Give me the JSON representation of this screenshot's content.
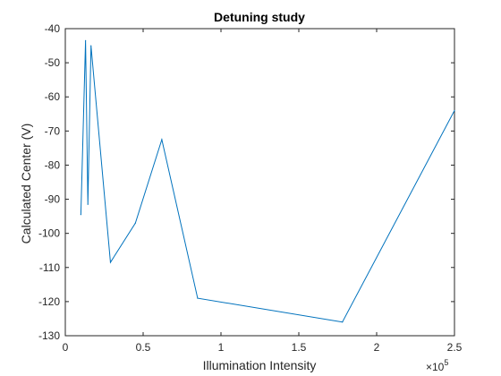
{
  "chart_data": {
    "type": "line",
    "title": "Detuning study",
    "xlabel": "Illumination Intensity",
    "ylabel": "Calculated Center (V)",
    "xlim": [
      0,
      250000
    ],
    "ylim": [
      -130,
      -40
    ],
    "x_ticks": [
      0,
      50000,
      100000,
      150000,
      200000,
      250000
    ],
    "x_tick_labels": [
      "0",
      "0.5",
      "1",
      "1.5",
      "2",
      "2.5"
    ],
    "x_multiplier": {
      "base": "×10",
      "exponent": "5"
    },
    "y_ticks": [
      -130,
      -120,
      -110,
      -100,
      -90,
      -80,
      -70,
      -60,
      -50,
      -40
    ],
    "y_tick_labels": [
      "-130",
      "-120",
      "-110",
      "-100",
      "-90",
      "-80",
      "-70",
      "-60",
      "-50",
      "-40"
    ],
    "grid": false,
    "series": [
      {
        "color": "#0072BD",
        "x": [
          10000,
          13000,
          14500,
          16500,
          29000,
          45000,
          62000,
          85000,
          178000,
          250000
        ],
        "y": [
          -94.5,
          -43.5,
          -91.5,
          -45.0,
          -108.5,
          -97.0,
          -72.5,
          -119.0,
          -126.0,
          -64.0
        ]
      }
    ]
  }
}
